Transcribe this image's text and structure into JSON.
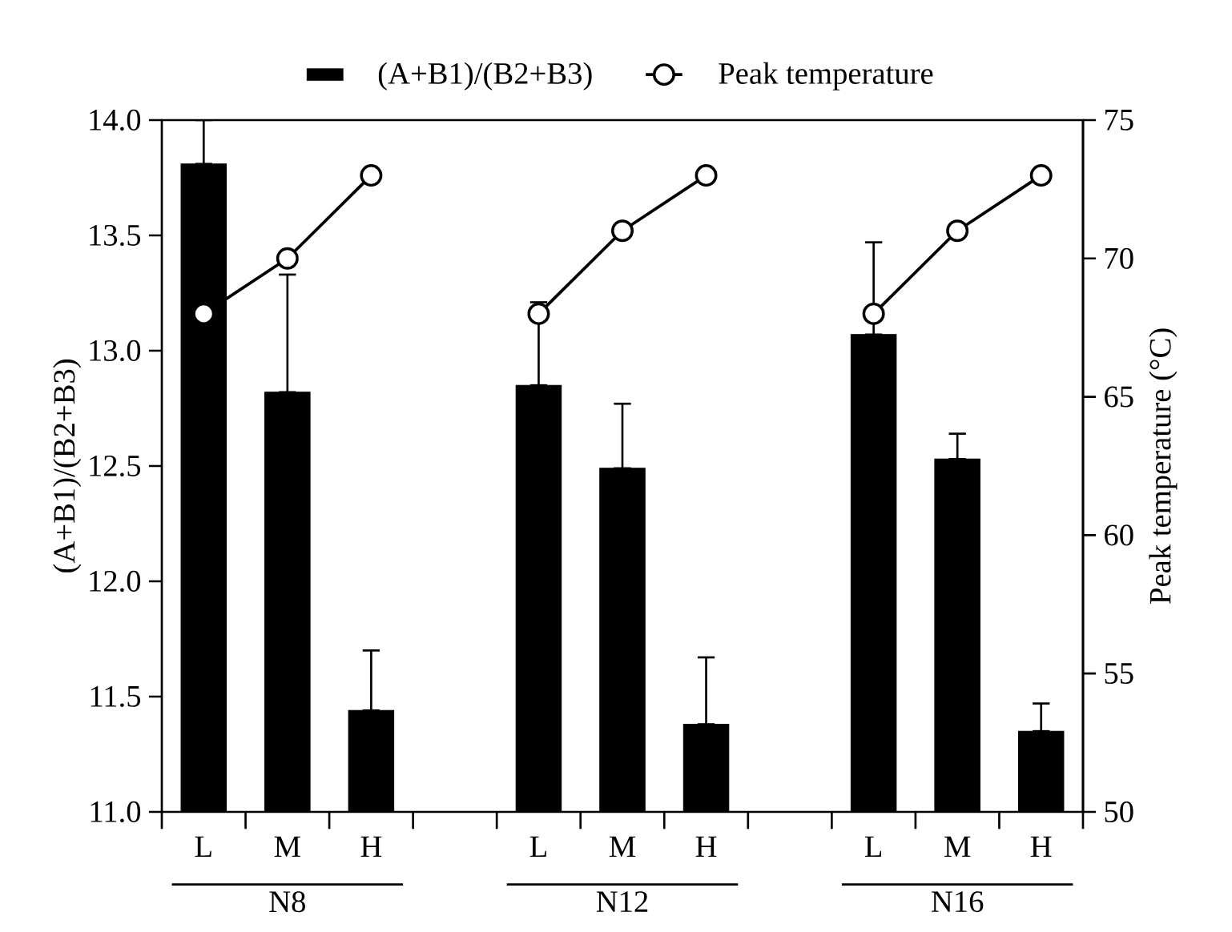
{
  "chart_data": {
    "type": "bar",
    "categories": [
      "L",
      "M",
      "H",
      null,
      "L",
      "M",
      "H",
      null,
      "L",
      "M",
      "H"
    ],
    "series": [
      {
        "name": "(A+B1)/(B2+B3)",
        "color": "#000000",
        "values": [
          13.81,
          12.82,
          11.44,
          null,
          12.85,
          12.49,
          11.38,
          null,
          13.07,
          12.53,
          11.35
        ],
        "errors": [
          [
            13.81,
            14.0
          ],
          [
            12.82,
            13.33
          ],
          [
            11.44,
            11.7
          ],
          null,
          [
            12.85,
            13.21
          ],
          [
            12.49,
            12.77
          ],
          [
            11.38,
            11.67
          ],
          null,
          [
            13.07,
            13.47
          ],
          [
            12.53,
            12.64
          ],
          [
            11.35,
            11.47
          ]
        ]
      },
      {
        "name": "Peak temperature",
        "type": "line",
        "axis": "y2",
        "color": "#000000",
        "values": [
          68,
          70,
          73,
          null,
          68,
          71,
          73,
          null,
          68,
          71,
          73
        ]
      }
    ],
    "ylabel": "(A+B1)/(B2+B3)",
    "y2label": "Peak temperature (°C)",
    "ylim": [
      11,
      14
    ],
    "yticks": [
      {
        "value": 11,
        "label": "11.0"
      },
      {
        "value": 11.5,
        "label": "11.5"
      },
      {
        "value": 12,
        "label": "12.0"
      },
      {
        "value": 12.5,
        "label": "12.5"
      },
      {
        "value": 13,
        "label": "13.0"
      },
      {
        "value": 13.5,
        "label": "13.5"
      },
      {
        "value": 14,
        "label": "14.0"
      }
    ],
    "y2lim": [
      50,
      75
    ],
    "y2ticks": [
      50,
      55,
      60,
      65,
      70,
      75
    ],
    "annotations": [
      "N8",
      "N12",
      "N16"
    ],
    "legend": "top",
    "marker": "circle"
  }
}
